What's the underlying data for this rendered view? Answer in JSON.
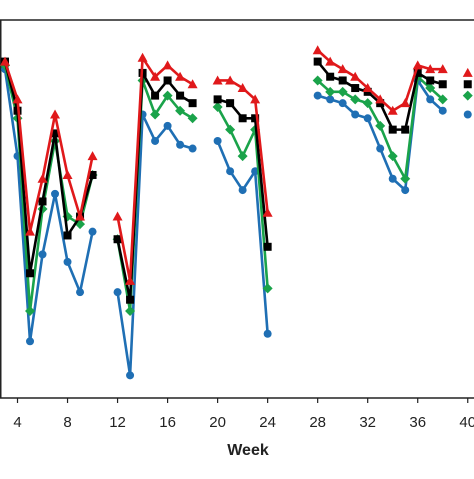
{
  "chart_data": {
    "type": "line",
    "xlabel": "Week",
    "x": [
      3,
      4,
      5,
      6,
      7,
      8,
      9,
      10,
      11,
      12,
      13,
      14,
      15,
      16,
      17,
      18,
      19,
      20,
      21,
      22,
      23,
      24,
      25,
      26,
      27,
      28,
      29,
      30,
      31,
      32,
      33,
      34,
      35,
      36,
      37,
      38,
      39,
      40
    ],
    "xlim": [
      2.6,
      40.5
    ],
    "xticks": [
      4,
      8,
      12,
      16,
      20,
      24,
      28,
      32,
      36,
      40
    ],
    "ylim": [
      0,
      100
    ],
    "series": [
      {
        "color": "#e0191b",
        "marker": "triangle",
        "values": [
          89,
          79,
          44,
          58,
          75,
          59,
          48,
          64,
          null,
          48,
          31,
          90,
          85,
          88,
          85,
          83,
          null,
          84,
          84,
          82,
          79,
          49,
          null,
          null,
          null,
          92,
          89,
          87,
          85,
          82,
          79,
          76,
          78,
          88,
          87,
          87,
          null,
          86
        ]
      },
      {
        "color": "#000000",
        "marker": "square",
        "values": [
          89,
          76,
          33,
          52,
          70,
          43,
          48,
          59,
          null,
          42,
          26,
          86,
          80,
          84,
          80,
          78,
          null,
          79,
          78,
          74,
          74,
          40,
          null,
          null,
          null,
          89,
          85,
          84,
          82,
          81,
          78,
          71,
          71,
          86,
          84,
          83,
          null,
          83
        ]
      },
      {
        "color": "#1aa34a",
        "marker": "diamond",
        "values": [
          88,
          74,
          23,
          50,
          68,
          48,
          46,
          59,
          null,
          42,
          23,
          84,
          75,
          80,
          76,
          74,
          null,
          77,
          71,
          64,
          71,
          29,
          null,
          null,
          null,
          84,
          81,
          81,
          79,
          78,
          72,
          64,
          58,
          85,
          82,
          79,
          null,
          80
        ]
      },
      {
        "color": "#1f6fb4",
        "marker": "circle",
        "values": [
          87,
          64,
          15,
          38,
          54,
          36,
          28,
          44,
          null,
          28,
          6,
          75,
          68,
          72,
          67,
          66,
          null,
          68,
          60,
          55,
          60,
          17,
          null,
          null,
          null,
          80,
          79,
          78,
          75,
          74,
          66,
          58,
          55,
          84,
          79,
          76,
          null,
          75
        ]
      }
    ]
  }
}
